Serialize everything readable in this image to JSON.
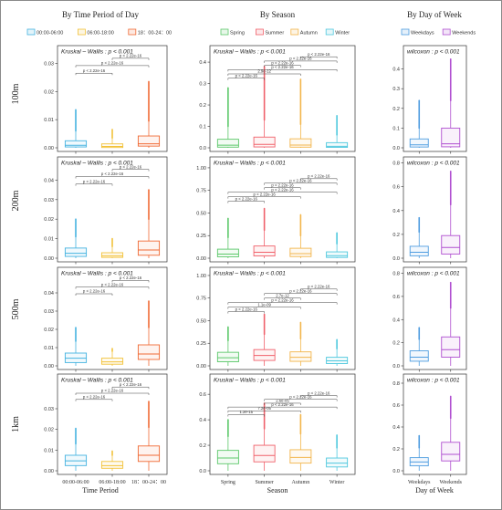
{
  "figure": {
    "column_titles": [
      "By Time Period of Day",
      "By Season",
      "By Day of Week"
    ],
    "row_labels": [
      "100m",
      "200m",
      "500m",
      "1km"
    ],
    "x_axis_titles": [
      "Time Period",
      "Season",
      "Day of Week"
    ]
  },
  "legends": [
    {
      "col": 0,
      "entries": [
        {
          "label": "00:00-06:00",
          "color": "#45b3e0"
        },
        {
          "label": "06:00-18:00",
          "color": "#f2c23a"
        },
        {
          "label": "18：00-24：00",
          "color": "#f06a35"
        }
      ]
    },
    {
      "col": 1,
      "entries": [
        {
          "label": "Spring",
          "color": "#5cc86a"
        },
        {
          "label": "Summer",
          "color": "#f0616b"
        },
        {
          "label": "Autumn",
          "color": "#f2b54a"
        },
        {
          "label": "Winter",
          "color": "#4fc8de"
        }
      ]
    },
    {
      "col": 2,
      "entries": [
        {
          "label": "Weekdays",
          "color": "#4f9de0"
        },
        {
          "label": "Weekends",
          "color": "#b04fd0"
        }
      ]
    }
  ],
  "chart_data": [
    {
      "type": "box",
      "row": 0,
      "col": 0,
      "categories": [
        "00:00-06:00",
        "06:00-18:00",
        "18：00-24：00"
      ],
      "colors": [
        "#45b3e0",
        "#f2c23a",
        "#f06a35"
      ],
      "yticks": [
        0.0,
        0.01,
        0.02,
        0.03
      ],
      "ylim": [
        0,
        0.035
      ],
      "test_label": "Kruskal – Wallis : p < 0.001",
      "boxes": [
        {
          "min": 0,
          "q1": 0.0003,
          "median": 0.0009,
          "q3": 0.0025,
          "max": 0.006,
          "outlier_max": 0.0135
        },
        {
          "min": 0,
          "q1": 0.0001,
          "median": 0.0005,
          "q3": 0.0014,
          "max": 0.0035,
          "outlier_max": 0.0065
        },
        {
          "min": 0,
          "q1": 0.0006,
          "median": 0.0014,
          "q3": 0.0042,
          "max": 0.0095,
          "outlier_max": 0.0235
        }
      ],
      "comparisons": [
        {
          "from": 0,
          "to": 1,
          "label": "p < 2.22e-16"
        },
        {
          "from": 0,
          "to": 2,
          "label": "p < 2.22e-16"
        },
        {
          "from": 1,
          "to": 2,
          "label": "p < 2.22e-16"
        }
      ],
      "bracket_y": [
        0.0265,
        0.0292,
        0.0318
      ]
    },
    {
      "type": "box",
      "row": 0,
      "col": 1,
      "categories": [
        "Spring",
        "Summer",
        "Autumn",
        "Winter"
      ],
      "colors": [
        "#5cc86a",
        "#f0616b",
        "#f2b54a",
        "#4fc8de"
      ],
      "yticks": [
        0.0,
        0.1,
        0.2,
        0.3,
        0.4
      ],
      "ylim": [
        0,
        0.46
      ],
      "test_label": "Kruskal – Wallis : p < 0.001",
      "boxes": [
        {
          "min": 0,
          "q1": 0.003,
          "median": 0.012,
          "q3": 0.04,
          "max": 0.1,
          "outlier_max": 0.28
        },
        {
          "min": 0,
          "q1": 0.004,
          "median": 0.016,
          "q3": 0.05,
          "max": 0.13,
          "outlier_max": 0.38
        },
        {
          "min": 0,
          "q1": 0.003,
          "median": 0.013,
          "q3": 0.042,
          "max": 0.11,
          "outlier_max": 0.32
        },
        {
          "min": 0,
          "q1": 0.002,
          "median": 0.007,
          "q3": 0.024,
          "max": 0.06,
          "outlier_max": 0.15
        }
      ],
      "comparisons": [
        {
          "from": 0,
          "to": 1,
          "label": "p < 2.22e-16"
        },
        {
          "from": 0,
          "to": 2,
          "label": "2.9e-12"
        },
        {
          "from": 0,
          "to": 3,
          "label": "p < 2.22e-16"
        },
        {
          "from": 1,
          "to": 2,
          "label": "p < 2.22e-16"
        },
        {
          "from": 1,
          "to": 3,
          "label": "p < 2.22e-16"
        },
        {
          "from": 2,
          "to": 3,
          "label": "p < 2.22e-16"
        }
      ],
      "bracket_y": [
        0.325,
        0.345,
        0.365,
        0.385,
        0.405,
        0.425
      ]
    },
    {
      "type": "box",
      "row": 0,
      "col": 2,
      "categories": [
        "Weekdays",
        "Weekends"
      ],
      "colors": [
        "#4f9de0",
        "#b04fd0"
      ],
      "yticks": [
        0.0,
        0.1,
        0.2,
        0.3,
        0.4
      ],
      "ylim": [
        0,
        0.5
      ],
      "test_label": "wilcoxon : p < 0.001",
      "boxes": [
        {
          "min": 0,
          "q1": 0.004,
          "median": 0.015,
          "q3": 0.045,
          "max": 0.1,
          "outlier_max": 0.24
        },
        {
          "min": 0,
          "q1": 0.005,
          "median": 0.02,
          "q3": 0.1,
          "max": 0.24,
          "outlier_max": 0.45
        }
      ],
      "comparisons": [],
      "bracket_y": []
    },
    {
      "type": "box",
      "row": 1,
      "col": 0,
      "categories": [
        "00:00-06:00",
        "06:00-18:00",
        "18：00-24：00"
      ],
      "colors": [
        "#45b3e0",
        "#f2c23a",
        "#f06a35"
      ],
      "yticks": [
        0.0,
        0.01,
        0.02,
        0.03,
        0.04
      ],
      "ylim": [
        0,
        0.05
      ],
      "test_label": "Kruskal – Wallis : p < 0.001",
      "boxes": [
        {
          "min": 0,
          "q1": 0.0009,
          "median": 0.0025,
          "q3": 0.0052,
          "max": 0.011,
          "outlier_max": 0.02
        },
        {
          "min": 0,
          "q1": 0.0004,
          "median": 0.0012,
          "q3": 0.0028,
          "max": 0.006,
          "outlier_max": 0.01
        },
        {
          "min": 0,
          "q1": 0.0015,
          "median": 0.0042,
          "q3": 0.0088,
          "max": 0.02,
          "outlier_max": 0.035
        }
      ],
      "comparisons": [
        {
          "from": 0,
          "to": 1,
          "label": "p < 2.22e-16"
        },
        {
          "from": 0,
          "to": 2,
          "label": "p < 2.22e-16"
        },
        {
          "from": 1,
          "to": 2,
          "label": "p < 2.22e-16"
        }
      ],
      "bracket_y": [
        0.038,
        0.0418,
        0.0455
      ]
    },
    {
      "type": "box",
      "row": 1,
      "col": 1,
      "categories": [
        "Spring",
        "Summer",
        "Autumn",
        "Winter"
      ],
      "colors": [
        "#5cc86a",
        "#f0616b",
        "#f2b54a",
        "#4fc8de"
      ],
      "yticks": [
        0.0,
        0.25,
        0.5,
        0.75,
        1.0
      ],
      "ylim": [
        0,
        1.08
      ],
      "test_label": "Kruskal – Wallis : p < 0.001",
      "boxes": [
        {
          "min": 0,
          "q1": 0.015,
          "median": 0.045,
          "q3": 0.1,
          "max": 0.23,
          "outlier_max": 0.44
        },
        {
          "min": 0,
          "q1": 0.025,
          "median": 0.065,
          "q3": 0.135,
          "max": 0.31,
          "outlier_max": 0.55
        },
        {
          "min": 0,
          "q1": 0.018,
          "median": 0.05,
          "q3": 0.11,
          "max": 0.25,
          "outlier_max": 0.48
        },
        {
          "min": 0,
          "q1": 0.008,
          "median": 0.028,
          "q3": 0.07,
          "max": 0.16,
          "outlier_max": 0.28
        }
      ],
      "comparisons": [
        {
          "from": 0,
          "to": 1,
          "label": "p < 2.22e-16"
        },
        {
          "from": 0,
          "to": 2,
          "label": "p < 2.22e-16"
        },
        {
          "from": 0,
          "to": 3,
          "label": "p < 2.22e-16"
        },
        {
          "from": 1,
          "to": 2,
          "label": "p < 2.22e-16"
        },
        {
          "from": 1,
          "to": 3,
          "label": "p < 2.22e-16"
        },
        {
          "from": 2,
          "to": 3,
          "label": "p < 2.22e-16"
        }
      ],
      "bracket_y": [
        0.63,
        0.68,
        0.73,
        0.78,
        0.83,
        0.88
      ]
    },
    {
      "type": "box",
      "row": 1,
      "col": 2,
      "categories": [
        "Weekdays",
        "Weekends"
      ],
      "colors": [
        "#4f9de0",
        "#b04fd0"
      ],
      "yticks": [
        0.0,
        0.2,
        0.4,
        0.6,
        0.8
      ],
      "ylim": [
        0,
        0.82
      ],
      "test_label": "wilcoxon : p < 0.001",
      "boxes": [
        {
          "min": 0,
          "q1": 0.02,
          "median": 0.05,
          "q3": 0.1,
          "max": 0.22,
          "outlier_max": 0.34
        },
        {
          "min": 0,
          "q1": 0.035,
          "median": 0.09,
          "q3": 0.19,
          "max": 0.45,
          "outlier_max": 0.73
        }
      ],
      "comparisons": [],
      "bracket_y": []
    },
    {
      "type": "box",
      "row": 2,
      "col": 0,
      "categories": [
        "00:00-06:00",
        "06:00-18:00",
        "18：00-24：00"
      ],
      "colors": [
        "#45b3e0",
        "#f2c23a",
        "#f06a35"
      ],
      "yticks": [
        0.0,
        0.01,
        0.02,
        0.03,
        0.04
      ],
      "ylim": [
        0,
        0.052
      ],
      "test_label": "Kruskal – Wallis : p < 0.001",
      "boxes": [
        {
          "min": 0,
          "q1": 0.0018,
          "median": 0.0042,
          "q3": 0.007,
          "max": 0.0135,
          "outlier_max": 0.021
        },
        {
          "min": 0,
          "q1": 0.0009,
          "median": 0.0022,
          "q3": 0.0042,
          "max": 0.008,
          "outlier_max": 0.0095
        },
        {
          "min": 0,
          "q1": 0.0035,
          "median": 0.0065,
          "q3": 0.0115,
          "max": 0.021,
          "outlier_max": 0.0355
        }
      ],
      "comparisons": [
        {
          "from": 0,
          "to": 1,
          "label": "p < 2.22e-16"
        },
        {
          "from": 0,
          "to": 2,
          "label": "p < 2.22e-16"
        },
        {
          "from": 1,
          "to": 2,
          "label": "p < 2.22e-16"
        }
      ],
      "bracket_y": [
        0.0395,
        0.0432,
        0.0468
      ]
    },
    {
      "type": "box",
      "row": 2,
      "col": 1,
      "categories": [
        "Spring",
        "Summer",
        "Autumn",
        "Winter"
      ],
      "colors": [
        "#5cc86a",
        "#f0616b",
        "#f2b54a",
        "#4fc8de"
      ],
      "yticks": [
        0.0,
        0.25,
        0.5,
        0.75,
        1.0
      ],
      "ylim": [
        0,
        1.05
      ],
      "test_label": "Kruskal – Wallis : p < 0.001",
      "boxes": [
        {
          "min": 0,
          "q1": 0.045,
          "median": 0.09,
          "q3": 0.15,
          "max": 0.28,
          "outlier_max": 0.43
        },
        {
          "min": 0,
          "q1": 0.06,
          "median": 0.115,
          "q3": 0.18,
          "max": 0.35,
          "outlier_max": 0.57
        },
        {
          "min": 0,
          "q1": 0.05,
          "median": 0.095,
          "q3": 0.155,
          "max": 0.3,
          "outlier_max": 0.48
        },
        {
          "min": 0,
          "q1": 0.025,
          "median": 0.055,
          "q3": 0.095,
          "max": 0.19,
          "outlier_max": 0.29
        }
      ],
      "comparisons": [
        {
          "from": 0,
          "to": 1,
          "label": "p < 2.22e-16"
        },
        {
          "from": 0,
          "to": 2,
          "label": "1.1e-09"
        },
        {
          "from": 0,
          "to": 3,
          "label": "p < 2.22e-16"
        },
        {
          "from": 1,
          "to": 2,
          "label": "2.7e-12"
        },
        {
          "from": 1,
          "to": 3,
          "label": "p < 2.22e-16"
        },
        {
          "from": 2,
          "to": 3,
          "label": "p < 2.22e-16"
        }
      ],
      "bracket_y": [
        0.6,
        0.65,
        0.7,
        0.75,
        0.8,
        0.85
      ]
    },
    {
      "type": "box",
      "row": 2,
      "col": 2,
      "categories": [
        "Weekdays",
        "Weekends"
      ],
      "colors": [
        "#4f9de0",
        "#b04fd0"
      ],
      "yticks": [
        0.0,
        0.2,
        0.4,
        0.6,
        0.8
      ],
      "ylim": [
        0,
        0.82
      ],
      "test_label": "wilcoxon : p < 0.001",
      "boxes": [
        {
          "min": 0,
          "q1": 0.04,
          "median": 0.075,
          "q3": 0.13,
          "max": 0.23,
          "outlier_max": 0.33
        },
        {
          "min": 0,
          "q1": 0.075,
          "median": 0.14,
          "q3": 0.25,
          "max": 0.5,
          "outlier_max": 0.72
        }
      ],
      "comparisons": [],
      "bracket_y": []
    },
    {
      "type": "box",
      "row": 3,
      "col": 0,
      "categories": [
        "00:00-06:00",
        "06:00-18:00",
        "18：00-24：00"
      ],
      "colors": [
        "#45b3e0",
        "#f2c23a",
        "#f06a35"
      ],
      "yticks": [
        0.0,
        0.01,
        0.02,
        0.03
      ],
      "ylim": [
        0,
        0.045
      ],
      "test_label": "Kruskal – Wallis : p < 0.001",
      "boxes": [
        {
          "min": 0,
          "q1": 0.0025,
          "median": 0.0048,
          "q3": 0.0075,
          "max": 0.013,
          "outlier_max": 0.0205
        },
        {
          "min": 0,
          "q1": 0.0012,
          "median": 0.0025,
          "q3": 0.0045,
          "max": 0.0075,
          "outlier_max": 0.0095
        },
        {
          "min": 0,
          "q1": 0.0045,
          "median": 0.0075,
          "q3": 0.012,
          "max": 0.021,
          "outlier_max": 0.0335
        }
      ],
      "comparisons": [
        {
          "from": 0,
          "to": 1,
          "label": "p < 2.22e-16"
        },
        {
          "from": 0,
          "to": 2,
          "label": "p < 2.22e-16"
        },
        {
          "from": 1,
          "to": 2,
          "label": "p < 2.22e-16"
        }
      ],
      "bracket_y": [
        0.0345,
        0.0375,
        0.0405
      ]
    },
    {
      "type": "box",
      "row": 3,
      "col": 1,
      "categories": [
        "Spring",
        "Summer",
        "Autumn",
        "Winter"
      ],
      "colors": [
        "#5cc86a",
        "#f0616b",
        "#f2b54a",
        "#4fc8de"
      ],
      "yticks": [
        0.0,
        0.2,
        0.4,
        0.6
      ],
      "ylim": [
        0,
        0.73
      ],
      "test_label": "Kruskal – Wallis : p < 0.001",
      "boxes": [
        {
          "min": 0,
          "q1": 0.055,
          "median": 0.1,
          "q3": 0.16,
          "max": 0.27,
          "outlier_max": 0.4
        },
        {
          "min": 0,
          "q1": 0.07,
          "median": 0.12,
          "q3": 0.2,
          "max": 0.33,
          "outlier_max": 0.53
        },
        {
          "min": 0,
          "q1": 0.06,
          "median": 0.105,
          "q3": 0.165,
          "max": 0.29,
          "outlier_max": 0.44
        },
        {
          "min": 0,
          "q1": 0.03,
          "median": 0.06,
          "q3": 0.1,
          "max": 0.18,
          "outlier_max": 0.28
        }
      ],
      "comparisons": [
        {
          "from": 0,
          "to": 1,
          "label": "1.2e-15"
        },
        {
          "from": 0,
          "to": 2,
          "label": "7.2e-05"
        },
        {
          "from": 0,
          "to": 3,
          "label": "p < 2.22e-16"
        },
        {
          "from": 1,
          "to": 2,
          "label": "2.6e-05"
        },
        {
          "from": 1,
          "to": 3,
          "label": "p < 2.22e-16"
        },
        {
          "from": 2,
          "to": 3,
          "label": "p < 2.22e-16"
        }
      ],
      "bracket_y": [
        0.44,
        0.47,
        0.5,
        0.53,
        0.56,
        0.59
      ]
    },
    {
      "type": "box",
      "row": 3,
      "col": 2,
      "categories": [
        "Weekdays",
        "Weekends"
      ],
      "colors": [
        "#4f9de0",
        "#b04fd0"
      ],
      "yticks": [
        0.0,
        0.2,
        0.4,
        0.6,
        0.8
      ],
      "ylim": [
        0,
        0.85
      ],
      "test_label": "wilcoxon : p < 0.001",
      "boxes": [
        {
          "min": 0,
          "q1": 0.045,
          "median": 0.08,
          "q3": 0.12,
          "max": 0.21,
          "outlier_max": 0.32
        },
        {
          "min": 0,
          "q1": 0.09,
          "median": 0.15,
          "q3": 0.26,
          "max": 0.48,
          "outlier_max": 0.68
        }
      ],
      "comparisons": [],
      "bracket_y": []
    }
  ]
}
